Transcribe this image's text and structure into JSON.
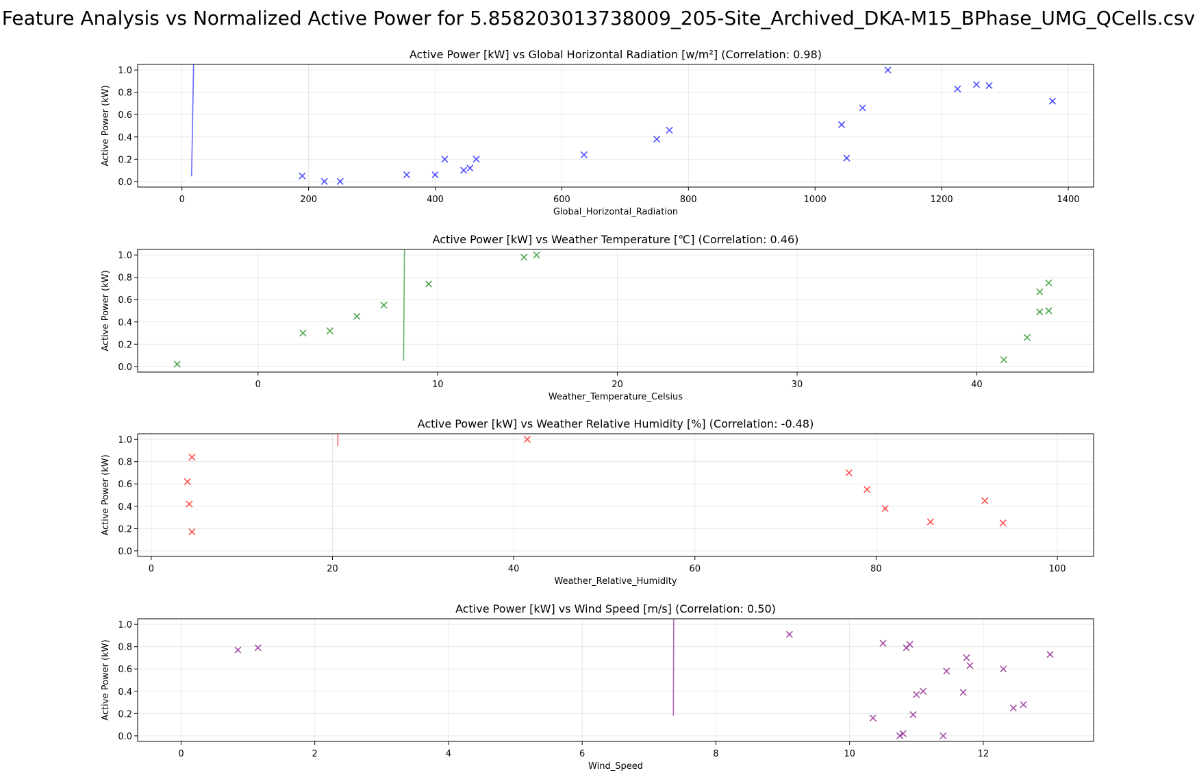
{
  "suptitle": "Feature Analysis vs Normalized Active Power for 5.858203013738009_205-Site_Archived_DKA-M15_BPhase_UMG_QCells.csv",
  "chart_data": [
    {
      "type": "scatter",
      "title": "Active Power [kW] vs Global Horizontal Radiation [w/m²] (Correlation: 0.98)",
      "xlabel": "Global_Horizontal_Radiation",
      "ylabel": "Active Power (kW)",
      "color": "#0000ff",
      "marker": "x",
      "grid": true,
      "xlim": [
        -70,
        1440
      ],
      "ylim": [
        -0.05,
        1.05
      ],
      "xticks": [
        0,
        200,
        400,
        600,
        800,
        1000,
        1200,
        1400
      ],
      "yticks": [
        0.0,
        0.2,
        0.4,
        0.6,
        0.8,
        1.0
      ],
      "outliers": [
        {
          "x": 1375,
          "y": 0.72
        },
        {
          "x": 1275,
          "y": 0.86
        },
        {
          "x": 1255,
          "y": 0.87
        },
        {
          "x": 1225,
          "y": 0.83
        },
        {
          "x": 1115,
          "y": 1.0
        },
        {
          "x": 1075,
          "y": 0.66
        },
        {
          "x": 1050,
          "y": 0.21
        },
        {
          "x": 1042,
          "y": 0.51
        },
        {
          "x": 770,
          "y": 0.46
        },
        {
          "x": 750,
          "y": 0.38
        },
        {
          "x": 635,
          "y": 0.24
        },
        {
          "x": 465,
          "y": 0.2
        },
        {
          "x": 455,
          "y": 0.12
        },
        {
          "x": 445,
          "y": 0.1
        },
        {
          "x": 400,
          "y": 0.06
        },
        {
          "x": 355,
          "y": 0.06
        },
        {
          "x": 250,
          "y": 0.0
        },
        {
          "x": 225,
          "y": 0.0
        },
        {
          "x": 415,
          "y": 0.2
        },
        {
          "x": 190,
          "y": 0.05
        }
      ]
    },
    {
      "type": "scatter",
      "title": "Active Power [kW] vs Weather Temperature [℃] (Correlation: 0.46)",
      "xlabel": "Weather_Temperature_Celsius",
      "ylabel": "Active Power (kW)",
      "color": "#008000",
      "marker": "x",
      "grid": true,
      "xlim": [
        -6.7,
        46.5
      ],
      "ylim": [
        -0.05,
        1.05
      ],
      "xticks": [
        0,
        10,
        20,
        30,
        40
      ],
      "yticks": [
        0.0,
        0.2,
        0.4,
        0.6,
        0.8,
        1.0
      ],
      "outliers": [
        {
          "x": 15.5,
          "y": 1.0
        },
        {
          "x": 14.8,
          "y": 0.98
        },
        {
          "x": 44,
          "y": 0.75
        },
        {
          "x": 43.5,
          "y": 0.67
        },
        {
          "x": 44,
          "y": 0.5
        },
        {
          "x": 43.5,
          "y": 0.49
        },
        {
          "x": 42.8,
          "y": 0.26
        },
        {
          "x": 41.5,
          "y": 0.06
        },
        {
          "x": 2.5,
          "y": 0.3
        },
        {
          "x": 4,
          "y": 0.32
        },
        {
          "x": 5.5,
          "y": 0.45
        },
        {
          "x": 7,
          "y": 0.55
        },
        {
          "x": 9.5,
          "y": 0.74
        },
        {
          "x": -4.5,
          "y": 0.02
        }
      ]
    },
    {
      "type": "scatter",
      "title": "Active Power [kW] vs Weather Relative Humidity [%] (Correlation: -0.48)",
      "xlabel": "Weather_Relative_Humidity",
      "ylabel": "Active Power (kW)",
      "color": "#ff0000",
      "marker": "x",
      "grid": true,
      "xlim": [
        -1.5,
        104
      ],
      "ylim": [
        -0.05,
        1.05
      ],
      "xticks": [
        0,
        20,
        40,
        60,
        80,
        100
      ],
      "yticks": [
        0.0,
        0.2,
        0.4,
        0.6,
        0.8,
        1.0
      ],
      "outliers": [
        {
          "x": 41.5,
          "y": 1.0
        },
        {
          "x": 92,
          "y": 0.45
        },
        {
          "x": 94,
          "y": 0.25
        },
        {
          "x": 4,
          "y": 0.62
        },
        {
          "x": 4.2,
          "y": 0.42
        },
        {
          "x": 4.5,
          "y": 0.17
        },
        {
          "x": 4.5,
          "y": 0.84
        },
        {
          "x": 77,
          "y": 0.7
        },
        {
          "x": 79,
          "y": 0.55
        },
        {
          "x": 81,
          "y": 0.38
        },
        {
          "x": 86,
          "y": 0.26
        }
      ]
    },
    {
      "type": "scatter",
      "title": "Active Power [kW] vs Wind Speed [m/s] (Correlation: 0.50)",
      "xlabel": "Wind_Speed",
      "ylabel": "Active Power (kW)",
      "color": "#800080",
      "marker": "x",
      "grid": true,
      "xlim": [
        -0.65,
        13.65
      ],
      "ylim": [
        -0.05,
        1.05
      ],
      "xticks": [
        0,
        2,
        4,
        6,
        8,
        10,
        12
      ],
      "yticks": [
        0.0,
        0.2,
        0.4,
        0.6,
        0.8,
        1.0
      ],
      "outliers": [
        {
          "x": 13.0,
          "y": 0.73
        },
        {
          "x": 12.6,
          "y": 0.28
        },
        {
          "x": 12.45,
          "y": 0.25
        },
        {
          "x": 12.3,
          "y": 0.6
        },
        {
          "x": 11.8,
          "y": 0.63
        },
        {
          "x": 11.75,
          "y": 0.7
        },
        {
          "x": 11.7,
          "y": 0.39
        },
        {
          "x": 11.4,
          "y": 0.0
        },
        {
          "x": 11.45,
          "y": 0.58
        },
        {
          "x": 11.1,
          "y": 0.4
        },
        {
          "x": 11.0,
          "y": 0.37
        },
        {
          "x": 10.95,
          "y": 0.19
        },
        {
          "x": 10.8,
          "y": 0.02
        },
        {
          "x": 10.75,
          "y": 0.0
        },
        {
          "x": 10.9,
          "y": 0.82
        },
        {
          "x": 10.85,
          "y": 0.79
        },
        {
          "x": 10.5,
          "y": 0.83
        },
        {
          "x": 10.35,
          "y": 0.16
        },
        {
          "x": 1.15,
          "y": 0.79
        },
        {
          "x": 0.85,
          "y": 0.77
        },
        {
          "x": 9.1,
          "y": 0.91
        }
      ]
    }
  ]
}
